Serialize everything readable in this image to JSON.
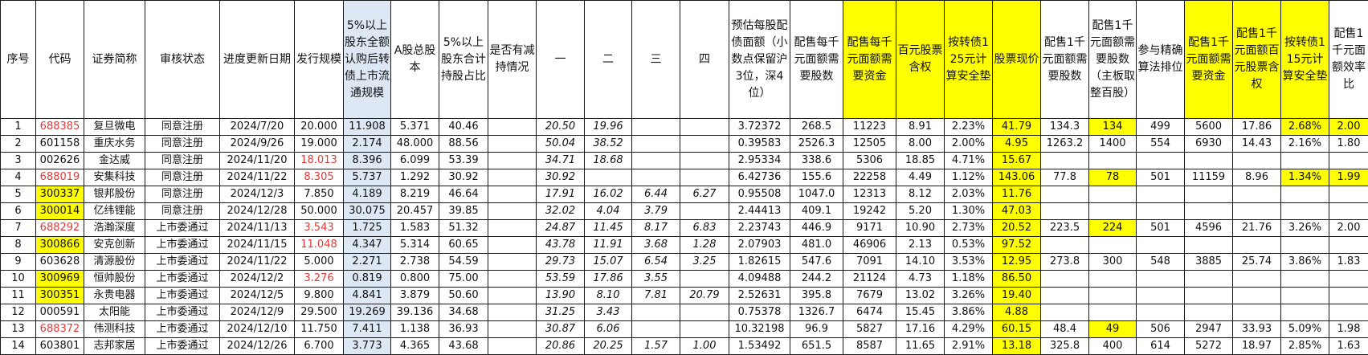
{
  "colors": {
    "highlight": "#ffff00",
    "blue_column": "#dde8f4",
    "red_text": "#e23a3a"
  },
  "headers": [
    "序号",
    "代码",
    "证券简称",
    "审核状态",
    "进度更新日期",
    "发行规模",
    "5%以上股东全额认购后转债上市流通规模",
    "A股总股本",
    "5%以上股东合计持股占比",
    "是否有减持情况",
    "一",
    "二",
    "三",
    "四",
    "预估每股配债面额（小数点保留沪3位，深4位）",
    "配售每千元面额需要股数",
    "配售每千元面额需要资金",
    "百元股票含权",
    "按转债125元计算安全垫",
    "股票现价",
    "配售1千元面额需要股数",
    "配售1千元面额需要股数（主板取整百股）",
    "参与精确算法排位",
    "配售1千元面额需要资金",
    "配售1千元面额百元股票含权",
    "按转债115元计算安全垫",
    "配售1千元面额效率比"
  ],
  "yellow_header_columns": [
    16,
    17,
    18,
    19,
    23,
    24,
    25
  ],
  "blue_column": 6,
  "italic_columns": [
    10,
    11,
    12,
    13
  ],
  "rows": [
    [
      "1",
      "688385",
      "复旦微电",
      "同意注册",
      "2024/7/20",
      "20.000",
      "11.908",
      "5.371",
      "40.46",
      "",
      "20.50",
      "19.96",
      "",
      "",
      "3.72372",
      "268.5",
      "11223",
      "8.91",
      "2.23%",
      "41.79",
      "134.3",
      "134",
      "499",
      "5600",
      "17.86",
      "2.68%",
      "2.00"
    ],
    [
      "2",
      "601158",
      "重庆水务",
      "同意注册",
      "2024/9/26",
      "19.000",
      "2.174",
      "48.000",
      "88.56",
      "",
      "50.04",
      "38.52",
      "",
      "",
      "0.39583",
      "2526.3",
      "12505",
      "8.00",
      "2.00%",
      "4.95",
      "1263.2",
      "1400",
      "554",
      "6930",
      "14.43",
      "2.16%",
      "1.80"
    ],
    [
      "3",
      "002626",
      "金达威",
      "同意注册",
      "2024/11/20",
      "18.013",
      "8.396",
      "6.099",
      "53.39",
      "",
      "34.71",
      "18.68",
      "",
      "",
      "2.95334",
      "338.6",
      "5306",
      "18.85",
      "4.71%",
      "15.67",
      "",
      "",
      "",
      "",
      "",
      "",
      ""
    ],
    [
      "4",
      "688019",
      "安集科技",
      "同意注册",
      "2024/11/22",
      "8.305",
      "5.737",
      "1.292",
      "30.92",
      "",
      "30.92",
      "",
      "",
      "",
      "6.42736",
      "155.6",
      "22258",
      "4.49",
      "1.12%",
      "143.06",
      "77.8",
      "78",
      "501",
      "11159",
      "8.96",
      "1.34%",
      "1.99"
    ],
    [
      "5",
      "300337",
      "银邦股份",
      "同意注册",
      "2024/12/3",
      "7.850",
      "4.189",
      "8.219",
      "46.64",
      "",
      "17.91",
      "16.02",
      "6.44",
      "6.27",
      "0.95508",
      "1047.0",
      "12313",
      "8.12",
      "2.03%",
      "11.76",
      "",
      "",
      "",
      "",
      "",
      "",
      ""
    ],
    [
      "6",
      "300014",
      "亿纬锂能",
      "同意注册",
      "2024/12/28",
      "50.000",
      "30.075",
      "20.457",
      "39.85",
      "",
      "32.02",
      "4.04",
      "3.79",
      "",
      "2.44413",
      "409.1",
      "19242",
      "5.20",
      "1.30%",
      "47.03",
      "",
      "",
      "",
      "",
      "",
      "",
      ""
    ],
    [
      "7",
      "688292",
      "浩瀚深度",
      "上市委通过",
      "2024/11/13",
      "3.543",
      "1.725",
      "1.583",
      "51.32",
      "",
      "24.87",
      "11.45",
      "8.17",
      "6.83",
      "2.23743",
      "446.9",
      "9171",
      "10.90",
      "2.73%",
      "20.52",
      "223.5",
      "224",
      "501",
      "4596",
      "21.76",
      "3.26%",
      "2.00"
    ],
    [
      "8",
      "300866",
      "安克创新",
      "上市委通过",
      "2024/11/15",
      "11.048",
      "4.347",
      "5.314",
      "60.65",
      "",
      "43.78",
      "11.91",
      "3.68",
      "1.28",
      "2.07903",
      "481.0",
      "46906",
      "2.13",
      "0.53%",
      "97.52",
      "",
      "",
      "",
      "",
      "",
      "",
      ""
    ],
    [
      "9",
      "603628",
      "清源股份",
      "上市委通过",
      "2024/11/22",
      "5.000",
      "2.271",
      "2.738",
      "54.59",
      "",
      "29.73",
      "15.07",
      "6.54",
      "3.25",
      "1.82615",
      "547.6",
      "7091",
      "14.10",
      "3.53%",
      "12.95",
      "273.8",
      "300",
      "548",
      "3885",
      "25.74",
      "3.86%",
      "1.83"
    ],
    [
      "10",
      "300969",
      "恒帅股份",
      "上市委通过",
      "2024/12/2",
      "3.276",
      "0.819",
      "0.800",
      "75.00",
      "",
      "53.59",
      "17.86",
      "3.55",
      "",
      "4.09488",
      "244.2",
      "21124",
      "4.73",
      "1.18%",
      "86.50",
      "",
      "",
      "",
      "",
      "",
      "",
      ""
    ],
    [
      "11",
      "300351",
      "永贵电器",
      "上市委通过",
      "2024/12/5",
      "9.800",
      "4.841",
      "3.879",
      "50.60",
      "",
      "13.90",
      "8.10",
      "7.81",
      "20.79",
      "2.52631",
      "395.8",
      "7679",
      "13.02",
      "3.26%",
      "19.40",
      "",
      "",
      "",
      "",
      "",
      "",
      ""
    ],
    [
      "12",
      "000591",
      "太阳能",
      "上市委通过",
      "2024/12/9",
      "29.500",
      "19.269",
      "39.136",
      "34.68",
      "",
      "31.25",
      "3.43",
      "",
      "",
      "0.75378",
      "1326.7",
      "6474",
      "15.45",
      "3.86%",
      "4.88",
      "",
      "",
      "",
      "",
      "",
      "",
      ""
    ],
    [
      "13",
      "688372",
      "伟测科技",
      "上市委通过",
      "2024/12/10",
      "11.750",
      "7.411",
      "1.138",
      "36.93",
      "",
      "30.87",
      "6.06",
      "",
      "",
      "10.32198",
      "96.9",
      "5827",
      "17.16",
      "4.29%",
      "60.15",
      "48.4",
      "49",
      "506",
      "2947",
      "33.93",
      "5.09%",
      "1.98"
    ],
    [
      "14",
      "603801",
      "志邦家居",
      "上市委通过",
      "2024/12/26",
      "6.700",
      "3.773",
      "4.365",
      "43.68",
      "",
      "20.86",
      "20.25",
      "1.57",
      "1.00",
      "1.53492",
      "651.5",
      "8587",
      "11.65",
      "2.91%",
      "13.18",
      "325.8",
      "400",
      "614",
      "5272",
      "18.97",
      "2.85%",
      "1.63"
    ]
  ],
  "yellow_cells": [
    [
      0,
      21
    ],
    [
      0,
      25
    ],
    [
      0,
      26
    ],
    [
      3,
      21
    ],
    [
      3,
      25
    ],
    [
      3,
      26
    ],
    [
      6,
      21
    ],
    [
      12,
      21
    ],
    [
      4,
      1
    ],
    [
      5,
      1
    ],
    [
      7,
      1
    ],
    [
      9,
      1
    ],
    [
      10,
      1
    ]
  ],
  "yellow_columns_all_rows": [
    19
  ],
  "red_cells": [
    [
      0,
      1
    ],
    [
      3,
      1
    ],
    [
      6,
      1
    ],
    [
      12,
      1
    ],
    [
      2,
      5
    ],
    [
      3,
      5
    ],
    [
      6,
      5
    ],
    [
      7,
      5
    ],
    [
      9,
      5
    ]
  ]
}
